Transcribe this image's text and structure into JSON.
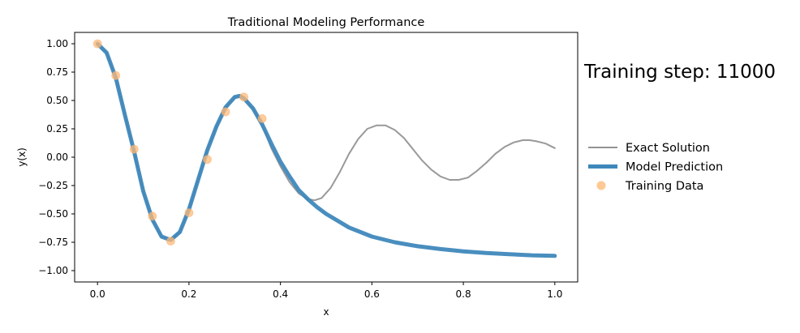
{
  "chart_data": {
    "type": "line",
    "title": "Traditional Modeling Performance",
    "xlabel": "x",
    "ylabel": "y(x)",
    "xlim": [
      -0.05,
      1.05
    ],
    "ylim": [
      -1.1,
      1.1
    ],
    "xticks": [
      0.0,
      0.2,
      0.4,
      0.6,
      0.8,
      1.0
    ],
    "xtick_labels": [
      "0.0",
      "0.2",
      "0.4",
      "0.6",
      "0.8",
      "1.0"
    ],
    "yticks": [
      1.0,
      0.75,
      0.5,
      0.25,
      0.0,
      -0.25,
      -0.5,
      -0.75,
      -1.0
    ],
    "ytick_labels": [
      "1.00",
      "0.75",
      "0.50",
      "0.25",
      "0.00",
      "−0.25",
      "−0.50",
      "−0.75",
      "−1.00"
    ],
    "grid": false,
    "legend_position": "right",
    "annotation": "Training step: 11000",
    "series": [
      {
        "name": "Exact Solution",
        "kind": "line",
        "color": "#939393",
        "x": [
          0.0,
          0.02,
          0.04,
          0.06,
          0.08,
          0.1,
          0.12,
          0.14,
          0.16,
          0.18,
          0.2,
          0.22,
          0.24,
          0.26,
          0.28,
          0.3,
          0.31,
          0.32,
          0.34,
          0.36,
          0.38,
          0.4,
          0.42,
          0.44,
          0.46,
          0.475,
          0.49,
          0.51,
          0.53,
          0.55,
          0.57,
          0.59,
          0.61,
          0.63,
          0.65,
          0.67,
          0.69,
          0.71,
          0.73,
          0.75,
          0.77,
          0.79,
          0.81,
          0.83,
          0.85,
          0.87,
          0.89,
          0.91,
          0.93,
          0.945,
          0.96,
          0.98,
          1.0
        ],
        "y": [
          1.0,
          0.92,
          0.7,
          0.37,
          0.05,
          -0.3,
          -0.55,
          -0.7,
          -0.73,
          -0.66,
          -0.46,
          -0.2,
          0.06,
          0.27,
          0.44,
          0.53,
          0.54,
          0.52,
          0.43,
          0.28,
          0.08,
          -0.08,
          -0.22,
          -0.32,
          -0.37,
          -0.38,
          -0.36,
          -0.27,
          -0.13,
          0.03,
          0.16,
          0.25,
          0.28,
          0.28,
          0.24,
          0.17,
          0.07,
          -0.03,
          -0.11,
          -0.17,
          -0.2,
          -0.2,
          -0.18,
          -0.12,
          -0.05,
          0.03,
          0.09,
          0.13,
          0.15,
          0.15,
          0.14,
          0.12,
          0.08
        ]
      },
      {
        "name": "Model Prediction",
        "kind": "line",
        "color": "#3f88bc",
        "x": [
          0.0,
          0.02,
          0.04,
          0.06,
          0.08,
          0.1,
          0.12,
          0.14,
          0.16,
          0.18,
          0.2,
          0.22,
          0.24,
          0.26,
          0.28,
          0.3,
          0.31,
          0.32,
          0.34,
          0.36,
          0.38,
          0.4,
          0.42,
          0.44,
          0.46,
          0.48,
          0.5,
          0.55,
          0.6,
          0.65,
          0.7,
          0.75,
          0.8,
          0.85,
          0.9,
          0.95,
          1.0
        ],
        "y": [
          1.0,
          0.92,
          0.7,
          0.37,
          0.05,
          -0.3,
          -0.55,
          -0.7,
          -0.73,
          -0.66,
          -0.46,
          -0.2,
          0.06,
          0.27,
          0.44,
          0.53,
          0.54,
          0.52,
          0.43,
          0.29,
          0.12,
          -0.04,
          -0.17,
          -0.29,
          -0.37,
          -0.44,
          -0.5,
          -0.62,
          -0.7,
          -0.75,
          -0.785,
          -0.81,
          -0.83,
          -0.845,
          -0.855,
          -0.865,
          -0.87
        ]
      },
      {
        "name": "Training Data",
        "kind": "scatter",
        "color": "#ffbb78",
        "x": [
          0.0,
          0.04,
          0.08,
          0.12,
          0.16,
          0.2,
          0.24,
          0.28,
          0.32,
          0.36
        ],
        "y": [
          1.0,
          0.72,
          0.07,
          -0.52,
          -0.74,
          -0.49,
          -0.02,
          0.4,
          0.53,
          0.34
        ]
      }
    ]
  }
}
